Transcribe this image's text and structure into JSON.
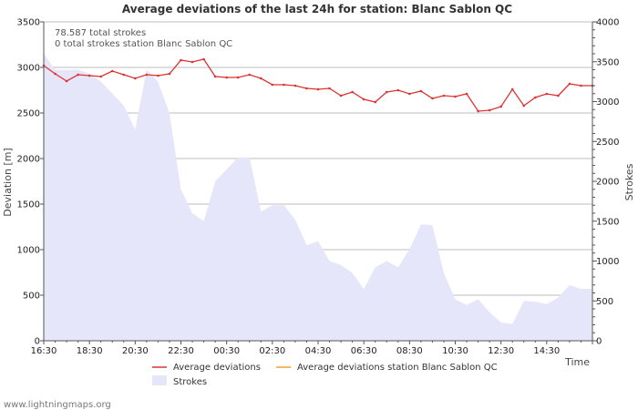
{
  "chart_data": {
    "type": "line",
    "title": "Average deviations of the last 24h for station: Blanc Sablon QC",
    "xlabel": "Time",
    "ylabel_left": "Deviation  [m]",
    "ylabel_right": "Strokes",
    "ylim_left": [
      0,
      3500
    ],
    "ylim_right": [
      0,
      4000
    ],
    "yticks_left": [
      0,
      500,
      1000,
      1500,
      2000,
      2500,
      3000,
      3500
    ],
    "yticks_right": [
      0,
      500,
      1000,
      1500,
      2000,
      2500,
      3000,
      3500,
      4000
    ],
    "xlim_hours": [
      0,
      24
    ],
    "xticks": [
      {
        "h": 0,
        "label": "16:30"
      },
      {
        "h": 2,
        "label": "18:30"
      },
      {
        "h": 4,
        "label": "20:30"
      },
      {
        "h": 6,
        "label": "22:30"
      },
      {
        "h": 8,
        "label": "00:30"
      },
      {
        "h": 10,
        "label": "02:30"
      },
      {
        "h": 12,
        "label": "04:30"
      },
      {
        "h": 14,
        "label": "06:30"
      },
      {
        "h": 16,
        "label": "08:30"
      },
      {
        "h": 18,
        "label": "10:30"
      },
      {
        "h": 20,
        "label": "12:30"
      },
      {
        "h": 22,
        "label": "14:30"
      }
    ],
    "annotations": [
      "78.587 total strokes",
      "0 total strokes station Blanc Sablon QC"
    ],
    "series": [
      {
        "name": "Average deviations",
        "color": "#dd3333",
        "axis": "left",
        "x": [
          0,
          0.5,
          1,
          1.5,
          2,
          2.5,
          3,
          3.5,
          4,
          4.5,
          5,
          5.5,
          6,
          6.5,
          7,
          7.5,
          8,
          8.5,
          9,
          9.5,
          10,
          10.5,
          11,
          11.5,
          12,
          12.5,
          13,
          13.5,
          14,
          14.5,
          15,
          15.5,
          16,
          16.5,
          17,
          17.5,
          18,
          18.5,
          19,
          19.5,
          20,
          20.5,
          21,
          21.5,
          22,
          22.5,
          23,
          23.5,
          24
        ],
        "values": [
          3020,
          2930,
          2850,
          2920,
          2910,
          2900,
          2960,
          2920,
          2880,
          2920,
          2910,
          2930,
          3080,
          3060,
          3090,
          2900,
          2890,
          2890,
          2920,
          2880,
          2810,
          2810,
          2800,
          2770,
          2760,
          2770,
          2690,
          2730,
          2650,
          2620,
          2730,
          2750,
          2710,
          2740,
          2660,
          2690,
          2680,
          2710,
          2520,
          2530,
          2570,
          2760,
          2580,
          2670,
          2710,
          2690,
          2820,
          2800,
          2800
        ]
      },
      {
        "name": "Average deviations station Blanc Sablon QC",
        "color": "#f0a030",
        "axis": "left",
        "x": [],
        "values": []
      },
      {
        "name": "Strokes",
        "color": "#e6e6fa",
        "axis": "right",
        "type": "area",
        "x": [
          0,
          0.5,
          1,
          1.5,
          2,
          2.5,
          3,
          3.5,
          4,
          4.5,
          5,
          5.5,
          6,
          6.5,
          7,
          7.5,
          8,
          8.5,
          9,
          9.5,
          10,
          10.5,
          11,
          11.5,
          12,
          12.5,
          13,
          13.5,
          14,
          14.5,
          15,
          15.5,
          16,
          16.5,
          17,
          17.5,
          18,
          18.5,
          19,
          19.5,
          20,
          20.5,
          21,
          21.5,
          22,
          22.5,
          23,
          23.5,
          24
        ],
        "values": [
          3600,
          3400,
          3400,
          3400,
          3350,
          3250,
          3100,
          2950,
          2650,
          3400,
          3250,
          2850,
          1900,
          1600,
          1500,
          2000,
          2150,
          2300,
          2300,
          1620,
          1700,
          1700,
          1520,
          1200,
          1250,
          1000,
          950,
          850,
          650,
          920,
          1000,
          920,
          1150,
          1460,
          1450,
          850,
          520,
          450,
          520,
          360,
          230,
          210,
          500,
          490,
          460,
          540,
          700,
          650,
          650
        ]
      }
    ],
    "legend": [
      {
        "label": "Average deviations",
        "color": "#dd3333",
        "kind": "line"
      },
      {
        "label": "Average deviations station Blanc Sablon QC",
        "color": "#f0a030",
        "kind": "line"
      },
      {
        "label": "Strokes",
        "color": "#e6e6fa",
        "kind": "area"
      }
    ]
  },
  "footer": {
    "credit": "www.lightningmaps.org"
  }
}
